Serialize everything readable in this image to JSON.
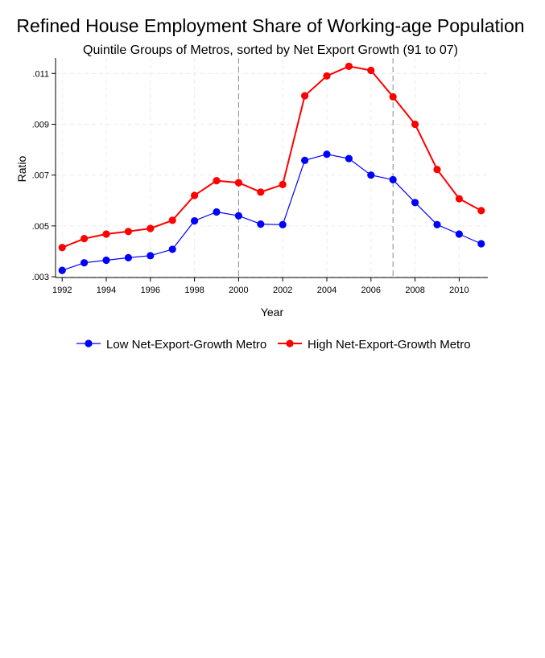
{
  "chart_data": {
    "type": "line",
    "title": "Refined House Employment Share of Working-age Population",
    "subtitle": "Quintile Groups of Metros, sorted by Net Export Growth (91 to 07)",
    "xlabel": "Year",
    "ylabel": "Ratio",
    "x": [
      1992,
      1993,
      1994,
      1995,
      1996,
      1997,
      1998,
      1999,
      2000,
      2001,
      2002,
      2003,
      2004,
      2005,
      2006,
      2007,
      2008,
      2009,
      2010,
      2011
    ],
    "xticks": [
      1992,
      1994,
      1996,
      1998,
      2000,
      2002,
      2004,
      2006,
      2008,
      2010
    ],
    "xtick_labels": [
      "1992",
      "1994",
      "1996",
      "1998",
      "2000",
      "2002",
      "2004",
      "2006",
      "2008",
      "2010"
    ],
    "yticks": [
      0.003,
      0.005,
      0.007,
      0.009,
      0.011
    ],
    "ytick_labels": [
      ".003",
      ".005",
      ".007",
      ".009",
      ".011"
    ],
    "xlim": [
      1991.7,
      2011.3
    ],
    "ylim": [
      0.00297,
      0.01161
    ],
    "grid": true,
    "vlines": [
      2000,
      2007
    ],
    "legend_position": "bottom",
    "series": [
      {
        "name": "Low Net-Export-Growth Metro",
        "color": "#0000ff",
        "values": [
          0.00325,
          0.00355,
          0.00365,
          0.00375,
          0.00383,
          0.00408,
          0.0052,
          0.00555,
          0.0054,
          0.00507,
          0.00505,
          0.00758,
          0.00782,
          0.00765,
          0.007,
          0.00682,
          0.00592,
          0.00505,
          0.00468,
          0.0043
        ]
      },
      {
        "name": "High Net-Export-Growth Metro",
        "color": "#ff0000",
        "values": [
          0.00415,
          0.0045,
          0.00468,
          0.00478,
          0.0049,
          0.00522,
          0.0062,
          0.00678,
          0.0067,
          0.00633,
          0.00663,
          0.01012,
          0.0109,
          0.01128,
          0.01112,
          0.01008,
          0.009,
          0.00722,
          0.00607,
          0.0056
        ]
      }
    ]
  }
}
